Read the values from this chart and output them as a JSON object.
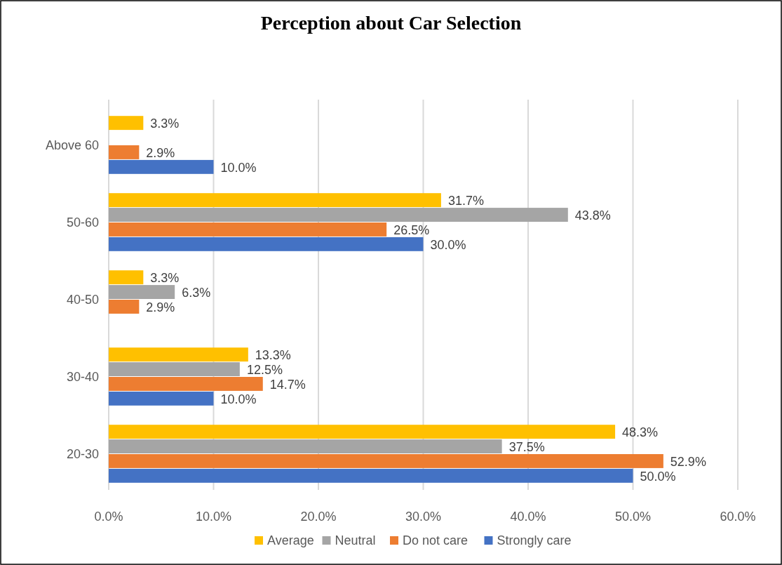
{
  "chart_data": {
    "type": "bar",
    "orientation": "horizontal",
    "title": "Perception about Car Selection",
    "categories": [
      "Above 60",
      "50-60",
      "40-50",
      "30-40",
      "20-30"
    ],
    "series": [
      {
        "name": "Average",
        "color": "#ffc000",
        "values": [
          3.3,
          31.7,
          3.3,
          13.3,
          48.3
        ],
        "value_labels": [
          "3.3%",
          "31.7%",
          "3.3%",
          "13.3%",
          "48.3%"
        ]
      },
      {
        "name": "Neutral",
        "color": "#a5a5a5",
        "values": [
          null,
          43.8,
          6.3,
          12.5,
          37.5
        ],
        "value_labels": [
          null,
          "43.8%",
          "6.3%",
          "12.5%",
          "37.5%"
        ]
      },
      {
        "name": "Do not care",
        "color": "#ed7d31",
        "values": [
          2.9,
          26.5,
          2.9,
          14.7,
          52.9
        ],
        "value_labels": [
          "2.9%",
          "26.5%",
          "2.9%",
          "14.7%",
          "52.9%"
        ]
      },
      {
        "name": "Strongly care",
        "color": "#4472c4",
        "values": [
          10.0,
          30.0,
          null,
          10.0,
          50.0
        ],
        "value_labels": [
          "10.0%",
          "30.0%",
          null,
          "10.0%",
          "50.0%"
        ]
      }
    ],
    "xlim": [
      0,
      60
    ],
    "xticks": [
      {
        "value": 0,
        "label": "0.0%"
      },
      {
        "value": 10,
        "label": "10.0%"
      },
      {
        "value": 20,
        "label": "20.0%"
      },
      {
        "value": 30,
        "label": "30.0%"
      },
      {
        "value": 40,
        "label": "40.0%"
      },
      {
        "value": 50,
        "label": "50.0%"
      },
      {
        "value": 60,
        "label": "60.0%"
      }
    ],
    "grid": "x",
    "legend": "bottom"
  }
}
